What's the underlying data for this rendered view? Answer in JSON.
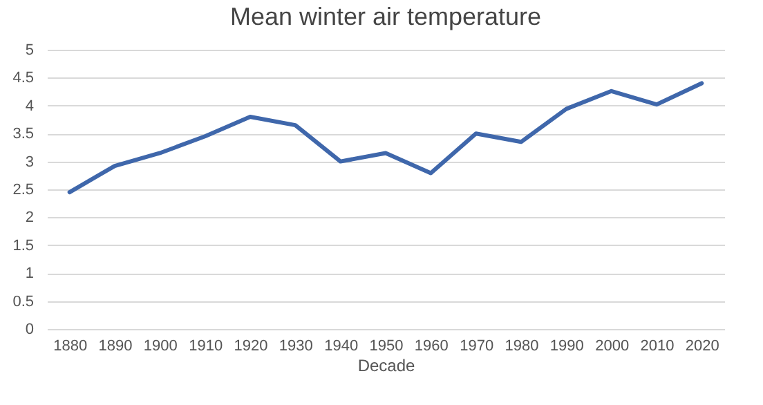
{
  "chart_data": {
    "type": "line",
    "title": "Mean winter air temperature",
    "xlabel": "Decade",
    "categories": [
      "1880",
      "1890",
      "1900",
      "1910",
      "1920",
      "1930",
      "1940",
      "1950",
      "1960",
      "1970",
      "1980",
      "1990",
      "2000",
      "2010",
      "2020"
    ],
    "series": [
      {
        "color": "#3f67ab",
        "values": [
          2.45,
          2.92,
          3.15,
          3.45,
          3.8,
          3.65,
          3.0,
          3.15,
          2.79,
          3.5,
          3.35,
          3.94,
          4.26,
          4.02,
          4.4
        ]
      }
    ],
    "ylim": [
      0,
      5
    ],
    "yticks": [
      0,
      0.5,
      1,
      1.5,
      2,
      2.5,
      3,
      3.5,
      4,
      4.5,
      5
    ],
    "grid": "y",
    "legend": false,
    "marker": "none",
    "line_style": "solid"
  }
}
